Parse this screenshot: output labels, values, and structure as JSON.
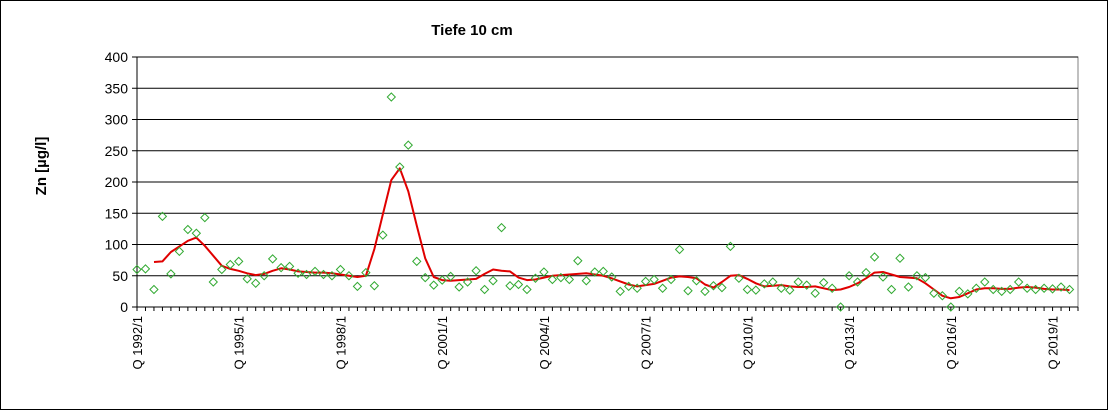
{
  "chart_data": {
    "type": "scatter",
    "title": "Tiefe  10 cm",
    "ylabel": "Zn [µg/l]",
    "xlabel": "",
    "ylim": [
      0,
      400
    ],
    "yticks": [
      0,
      50,
      100,
      150,
      200,
      250,
      300,
      350,
      400
    ],
    "x_domain": [
      "Q 1992/1",
      "Q 2019/4"
    ],
    "x_tick_labels": [
      "Q 1992/1",
      "Q 1995/1",
      "Q 1998/1",
      "Q 2001/1",
      "Q 2004/1",
      "Q 2007/1",
      "Q 2010/1",
      "Q 2013/1",
      "Q 2016/1",
      "Q 2019/1"
    ],
    "grid": "horizontal",
    "legend": "none",
    "colors": {
      "points": "#33aa33",
      "line": "#e00000",
      "grid": "#000000"
    },
    "series": [
      {
        "kind": "points",
        "marker": "diamond",
        "points": [
          [
            "1992/1",
            60
          ],
          [
            "1992/2",
            61
          ],
          [
            "1992/3",
            28
          ],
          [
            "1992/4",
            145
          ],
          [
            "1993/1",
            53
          ],
          [
            "1993/2",
            89
          ],
          [
            "1993/3",
            124
          ],
          [
            "1993/4",
            118
          ],
          [
            "1994/1",
            143
          ],
          [
            "1994/2",
            40
          ],
          [
            "1994/3",
            60
          ],
          [
            "1994/4",
            68
          ],
          [
            "1995/1",
            73
          ],
          [
            "1995/2",
            45
          ],
          [
            "1995/3",
            38
          ],
          [
            "1995/4",
            50
          ],
          [
            "1996/1",
            77
          ],
          [
            "1996/2",
            63
          ],
          [
            "1996/3",
            65
          ],
          [
            "1996/4",
            54
          ],
          [
            "1997/1",
            52
          ],
          [
            "1997/2",
            57
          ],
          [
            "1997/3",
            52
          ],
          [
            "1997/4",
            50
          ],
          [
            "1998/1",
            60
          ],
          [
            "1998/2",
            50
          ],
          [
            "1998/3",
            33
          ],
          [
            "1998/4",
            55
          ],
          [
            "1999/1",
            34
          ],
          [
            "1999/2",
            115
          ],
          [
            "1999/3",
            336
          ],
          [
            "1999/4",
            224
          ],
          [
            "2000/1",
            259
          ],
          [
            "2000/2",
            73
          ],
          [
            "2000/3",
            47
          ],
          [
            "2000/4",
            35
          ],
          [
            "2001/1",
            43
          ],
          [
            "2001/2",
            49
          ],
          [
            "2001/3",
            32
          ],
          [
            "2001/4",
            40
          ],
          [
            "2002/1",
            58
          ],
          [
            "2002/2",
            28
          ],
          [
            "2002/3",
            42
          ],
          [
            "2002/4",
            127
          ],
          [
            "2003/1",
            34
          ],
          [
            "2003/2",
            36
          ],
          [
            "2003/3",
            28
          ],
          [
            "2003/4",
            46
          ],
          [
            "2004/1",
            56
          ],
          [
            "2004/2",
            44
          ],
          [
            "2004/3",
            47
          ],
          [
            "2004/4",
            44
          ],
          [
            "2005/1",
            74
          ],
          [
            "2005/2",
            42
          ],
          [
            "2005/3",
            56
          ],
          [
            "2005/4",
            57
          ],
          [
            "2006/1",
            48
          ],
          [
            "2006/2",
            25
          ],
          [
            "2006/3",
            33
          ],
          [
            "2006/4",
            30
          ],
          [
            "2007/1",
            41
          ],
          [
            "2007/2",
            44
          ],
          [
            "2007/3",
            30
          ],
          [
            "2007/4",
            44
          ],
          [
            "2008/1",
            92
          ],
          [
            "2008/2",
            26
          ],
          [
            "2008/3",
            42
          ],
          [
            "2008/4",
            25
          ],
          [
            "2009/1",
            34
          ],
          [
            "2009/2",
            31
          ],
          [
            "2009/3",
            97
          ],
          [
            "2009/4",
            46
          ],
          [
            "2010/1",
            28
          ],
          [
            "2010/2",
            27
          ],
          [
            "2010/3",
            37
          ],
          [
            "2010/4",
            40
          ],
          [
            "2011/1",
            30
          ],
          [
            "2011/2",
            27
          ],
          [
            "2011/3",
            40
          ],
          [
            "2011/4",
            35
          ],
          [
            "2012/1",
            22
          ],
          [
            "2012/2",
            39
          ],
          [
            "2012/3",
            30
          ],
          [
            "2012/4",
            0
          ],
          [
            "2013/1",
            50
          ],
          [
            "2013/2",
            40
          ],
          [
            "2013/3",
            55
          ],
          [
            "2013/4",
            80
          ],
          [
            "2014/1",
            48
          ],
          [
            "2014/2",
            28
          ],
          [
            "2014/3",
            78
          ],
          [
            "2014/4",
            32
          ],
          [
            "2015/1",
            50
          ],
          [
            "2015/2",
            47
          ],
          [
            "2015/3",
            22
          ],
          [
            "2015/4",
            18
          ],
          [
            "2016/1",
            0
          ],
          [
            "2016/2",
            25
          ],
          [
            "2016/3",
            21
          ],
          [
            "2016/4",
            30
          ],
          [
            "2017/1",
            40
          ],
          [
            "2017/2",
            28
          ],
          [
            "2017/3",
            25
          ],
          [
            "2017/4",
            28
          ],
          [
            "2018/1",
            40
          ],
          [
            "2018/2",
            30
          ],
          [
            "2018/3",
            28
          ],
          [
            "2018/4",
            30
          ],
          [
            "2019/1",
            29
          ],
          [
            "2019/2",
            32
          ],
          [
            "2019/3",
            28
          ]
        ]
      },
      {
        "kind": "line",
        "points": [
          [
            "1992/3",
            72
          ],
          [
            "1992/4",
            73
          ],
          [
            "1993/1",
            88
          ],
          [
            "1993/2",
            97
          ],
          [
            "1993/3",
            106
          ],
          [
            "1993/4",
            111
          ],
          [
            "1994/1",
            98
          ],
          [
            "1994/2",
            82
          ],
          [
            "1994/3",
            66
          ],
          [
            "1994/4",
            61
          ],
          [
            "1995/1",
            58
          ],
          [
            "1995/2",
            54
          ],
          [
            "1995/3",
            51
          ],
          [
            "1995/4",
            53
          ],
          [
            "1996/1",
            58
          ],
          [
            "1996/2",
            62
          ],
          [
            "1996/3",
            60
          ],
          [
            "1996/4",
            57
          ],
          [
            "1997/1",
            56
          ],
          [
            "1997/2",
            55
          ],
          [
            "1997/3",
            55
          ],
          [
            "1997/4",
            54
          ],
          [
            "1998/1",
            52
          ],
          [
            "1998/2",
            50
          ],
          [
            "1998/3",
            48
          ],
          [
            "1998/4",
            50
          ],
          [
            "1999/1",
            93
          ],
          [
            "1999/2",
            148
          ],
          [
            "1999/3",
            203
          ],
          [
            "1999/4",
            222
          ],
          [
            "2000/1",
            185
          ],
          [
            "2000/2",
            130
          ],
          [
            "2000/3",
            78
          ],
          [
            "2000/4",
            48
          ],
          [
            "2001/1",
            43
          ],
          [
            "2001/2",
            42
          ],
          [
            "2001/3",
            43
          ],
          [
            "2001/4",
            44
          ],
          [
            "2002/1",
            45
          ],
          [
            "2002/2",
            53
          ],
          [
            "2002/3",
            60
          ],
          [
            "2002/4",
            58
          ],
          [
            "2003/1",
            57
          ],
          [
            "2003/2",
            47
          ],
          [
            "2003/3",
            43
          ],
          [
            "2003/4",
            44
          ],
          [
            "2004/1",
            47
          ],
          [
            "2004/2",
            50
          ],
          [
            "2004/3",
            51
          ],
          [
            "2004/4",
            52
          ],
          [
            "2005/1",
            53
          ],
          [
            "2005/2",
            54
          ],
          [
            "2005/3",
            52
          ],
          [
            "2005/4",
            50
          ],
          [
            "2006/1",
            46
          ],
          [
            "2006/2",
            41
          ],
          [
            "2006/3",
            36
          ],
          [
            "2006/4",
            33
          ],
          [
            "2007/1",
            35
          ],
          [
            "2007/2",
            37
          ],
          [
            "2007/3",
            42
          ],
          [
            "2007/4",
            47
          ],
          [
            "2008/1",
            49
          ],
          [
            "2008/2",
            48
          ],
          [
            "2008/3",
            46
          ],
          [
            "2008/4",
            36
          ],
          [
            "2009/1",
            31
          ],
          [
            "2009/2",
            40
          ],
          [
            "2009/3",
            50
          ],
          [
            "2009/4",
            51
          ],
          [
            "2010/1",
            45
          ],
          [
            "2010/2",
            38
          ],
          [
            "2010/3",
            33
          ],
          [
            "2010/4",
            34
          ],
          [
            "2011/1",
            35
          ],
          [
            "2011/2",
            33
          ],
          [
            "2011/3",
            32
          ],
          [
            "2011/4",
            32
          ],
          [
            "2012/1",
            33
          ],
          [
            "2012/2",
            30
          ],
          [
            "2012/3",
            27
          ],
          [
            "2012/4",
            28
          ],
          [
            "2013/1",
            32
          ],
          [
            "2013/2",
            38
          ],
          [
            "2013/3",
            46
          ],
          [
            "2013/4",
            55
          ],
          [
            "2014/1",
            56
          ],
          [
            "2014/2",
            52
          ],
          [
            "2014/3",
            48
          ],
          [
            "2014/4",
            47
          ],
          [
            "2015/1",
            46
          ],
          [
            "2015/2",
            38
          ],
          [
            "2015/3",
            28
          ],
          [
            "2015/4",
            18
          ],
          [
            "2016/1",
            14
          ],
          [
            "2016/2",
            16
          ],
          [
            "2016/3",
            22
          ],
          [
            "2016/4",
            28
          ],
          [
            "2017/1",
            30
          ],
          [
            "2017/2",
            30
          ],
          [
            "2017/3",
            29
          ],
          [
            "2017/4",
            29
          ],
          [
            "2018/1",
            31
          ],
          [
            "2018/2",
            32
          ],
          [
            "2018/3",
            31
          ],
          [
            "2018/4",
            29
          ],
          [
            "2019/1",
            28
          ],
          [
            "2019/2",
            28
          ],
          [
            "2019/3",
            27
          ]
        ]
      }
    ]
  }
}
